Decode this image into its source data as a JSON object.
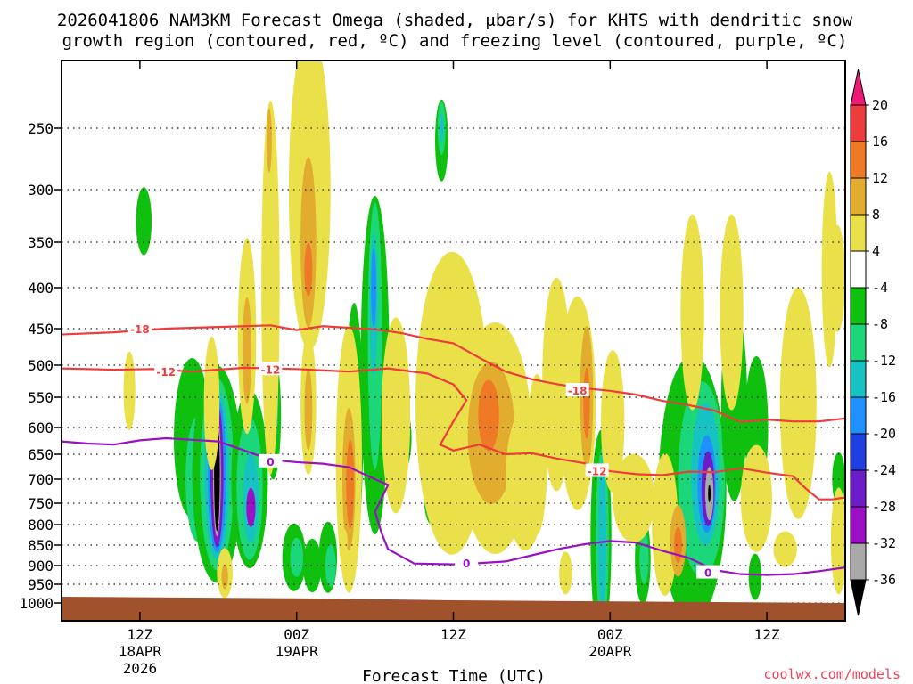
{
  "chart_data": {
    "type": "heatmap",
    "title_line1": "2026041806 NAM3KM Forecast Omega (shaded, μbar/s) for KHTS with dendritic snow",
    "title_line2": "growth region (contoured, red, ºC) and freezing level (contoured, purple, ºC)",
    "xlabel": "Forecast Time (UTC)",
    "credit": "coolwx.com/models",
    "x_range_hours": [
      0,
      60
    ],
    "x_ticks": [
      {
        "hour": 6,
        "label": "12Z",
        "sub1": "18APR",
        "sub2": "2026"
      },
      {
        "hour": 18,
        "label": "00Z",
        "sub1": "19APR",
        "sub2": ""
      },
      {
        "hour": 30,
        "label": "12Z",
        "sub1": "",
        "sub2": ""
      },
      {
        "hour": 42,
        "label": "00Z",
        "sub1": "20APR",
        "sub2": ""
      },
      {
        "hour": 54,
        "label": "12Z",
        "sub1": "",
        "sub2": ""
      }
    ],
    "y_ticks_mb": [
      250,
      300,
      350,
      400,
      450,
      500,
      550,
      600,
      650,
      700,
      750,
      800,
      850,
      900,
      950,
      1000
    ],
    "y_tick_labels": [
      "250",
      "300",
      "350",
      "400",
      "450",
      "500",
      "550",
      "600",
      "650",
      "700",
      "750",
      "800",
      "850",
      "900",
      "950",
      "1000"
    ],
    "colorbar": {
      "labels": [
        "20",
        "16",
        "12",
        "8",
        "4",
        "-4",
        "-8",
        "-12",
        "-16",
        "-20",
        "-24",
        "-28",
        "-32",
        "-36"
      ],
      "colors": [
        "#ee1b76",
        "#ee3b3b",
        "#ee7a25",
        "#e2ac2e",
        "#eae14a",
        "#ffffff",
        "#0fc00f",
        "#1cd67a",
        "#17c2c2",
        "#1e90ff",
        "#1f3fe0",
        "#6c1cc8",
        "#9a10c4",
        "#a9a9a9",
        "#000000"
      ]
    },
    "ground_color": "#a0522d",
    "dgz_contours": [
      {
        "label": "-18",
        "color": "#ee3b3b",
        "points": [
          [
            0,
            458
          ],
          [
            4,
            455
          ],
          [
            8,
            450
          ],
          [
            12,
            448
          ],
          [
            16,
            446
          ],
          [
            18,
            452
          ],
          [
            20,
            447
          ],
          [
            24,
            451
          ],
          [
            26,
            456
          ],
          [
            28,
            464
          ],
          [
            30,
            470
          ],
          [
            32,
            490
          ],
          [
            34,
            510
          ],
          [
            36,
            522
          ],
          [
            38,
            530
          ],
          [
            40,
            536
          ],
          [
            42,
            540
          ],
          [
            44,
            546
          ],
          [
            46,
            556
          ],
          [
            48,
            563
          ],
          [
            50,
            572
          ],
          [
            52,
            591
          ],
          [
            54,
            587
          ],
          [
            56,
            590
          ],
          [
            58,
            590
          ],
          [
            60,
            585
          ]
        ],
        "label_at": [
          6,
          450
        ]
      },
      {
        "label": "-12",
        "color": "#ee3b3b",
        "points": [
          [
            0,
            505
          ],
          [
            4,
            507
          ],
          [
            7,
            506
          ],
          [
            10,
            510
          ],
          [
            14,
            504
          ],
          [
            18,
            506
          ],
          [
            22,
            510
          ],
          [
            25,
            505
          ],
          [
            28,
            513
          ],
          [
            30,
            530
          ],
          [
            31,
            555
          ],
          [
            30,
            590
          ],
          [
            29,
            632
          ],
          [
            30,
            643
          ],
          [
            32,
            632
          ],
          [
            34,
            650
          ],
          [
            36,
            648
          ],
          [
            38,
            659
          ],
          [
            40,
            668
          ],
          [
            42,
            684
          ],
          [
            44,
            690
          ],
          [
            46,
            692
          ],
          [
            48,
            685
          ],
          [
            50,
            686
          ],
          [
            52,
            678
          ],
          [
            54,
            687
          ],
          [
            56,
            694
          ],
          [
            57,
            720
          ],
          [
            58,
            742
          ],
          [
            59,
            742
          ],
          [
            60,
            738
          ]
        ],
        "label_at": [
          8,
          510
        ]
      }
    ],
    "frz_contour": {
      "label": "0",
      "color": "#9a10c4",
      "points": [
        [
          0,
          626
        ],
        [
          2,
          630
        ],
        [
          4,
          632
        ],
        [
          6,
          624
        ],
        [
          8,
          620
        ],
        [
          10,
          623
        ],
        [
          12,
          626
        ],
        [
          14,
          643
        ],
        [
          16,
          661
        ],
        [
          18,
          666
        ],
        [
          20,
          669
        ],
        [
          22,
          676
        ],
        [
          24,
          700
        ],
        [
          25,
          712
        ],
        [
          24.5,
          740
        ],
        [
          24,
          770
        ],
        [
          24.5,
          820
        ],
        [
          25,
          860
        ],
        [
          27,
          895
        ],
        [
          30,
          897
        ],
        [
          32,
          894
        ],
        [
          34,
          890
        ],
        [
          36,
          875
        ],
        [
          38,
          860
        ],
        [
          40,
          848
        ],
        [
          42,
          840
        ],
        [
          44,
          844
        ],
        [
          46,
          864
        ],
        [
          48,
          881
        ],
        [
          50,
          912
        ],
        [
          52,
          923
        ],
        [
          54,
          925
        ],
        [
          56,
          923
        ],
        [
          58,
          915
        ],
        [
          60,
          905
        ]
      ],
      "label_at": [
        31,
        893
      ]
    }
  }
}
